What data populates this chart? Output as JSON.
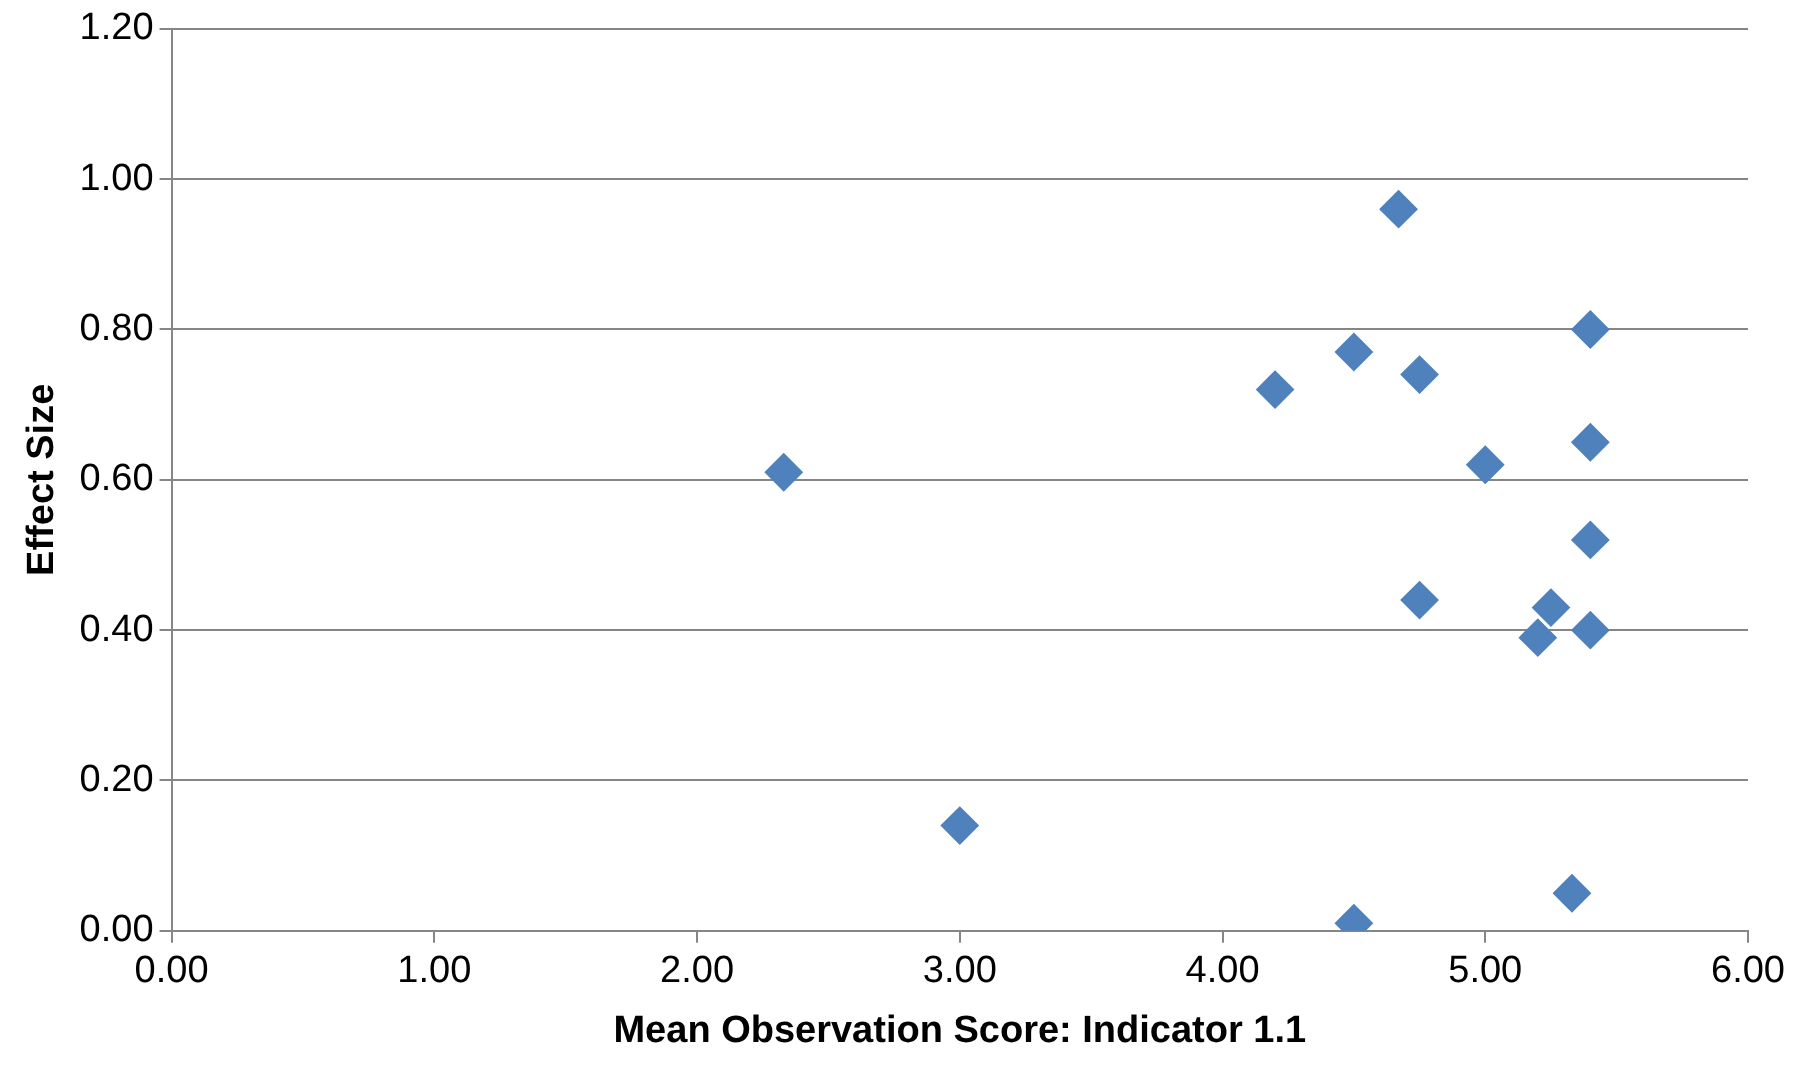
{
  "chart_data": {
    "type": "scatter",
    "xlabel": "Mean Observation Score: Indicator 1.1",
    "ylabel": "Effect Size",
    "x": [
      2.33,
      3.0,
      4.2,
      4.5,
      4.67,
      4.75,
      4.75,
      5.0,
      5.2,
      5.25,
      5.4,
      5.4,
      5.4,
      5.4,
      5.33,
      4.5
    ],
    "series": [
      {
        "color": "#4f81bd",
        "values": [
          0.61,
          0.14,
          0.72,
          0.77,
          0.96,
          0.74,
          0.44,
          0.62,
          0.39,
          0.43,
          0.8,
          0.65,
          0.52,
          0.4,
          0.05,
          0.01
        ]
      }
    ],
    "xlim": [
      0,
      6
    ],
    "xticks": [
      {
        "value": 0,
        "label": "0.00"
      },
      {
        "value": 1,
        "label": "1.00"
      },
      {
        "value": 2,
        "label": "2.00"
      },
      {
        "value": 3,
        "label": "3.00"
      },
      {
        "value": 4,
        "label": "4.00"
      },
      {
        "value": 5,
        "label": "5.00"
      },
      {
        "value": 6,
        "label": "6.00"
      }
    ],
    "ylim": [
      0,
      1.2
    ],
    "yticks": [
      {
        "value": 0,
        "label": "0.00"
      },
      {
        "value": 0.2,
        "label": "0.20"
      },
      {
        "value": 0.4,
        "label": "0.40"
      },
      {
        "value": 0.6,
        "label": "0.60"
      },
      {
        "value": 0.8,
        "label": "0.80"
      },
      {
        "value": 1,
        "label": "1.00"
      },
      {
        "value": 1.2,
        "label": "1.20"
      }
    ],
    "grid": "y",
    "legend": false,
    "marker": "diamond"
  }
}
